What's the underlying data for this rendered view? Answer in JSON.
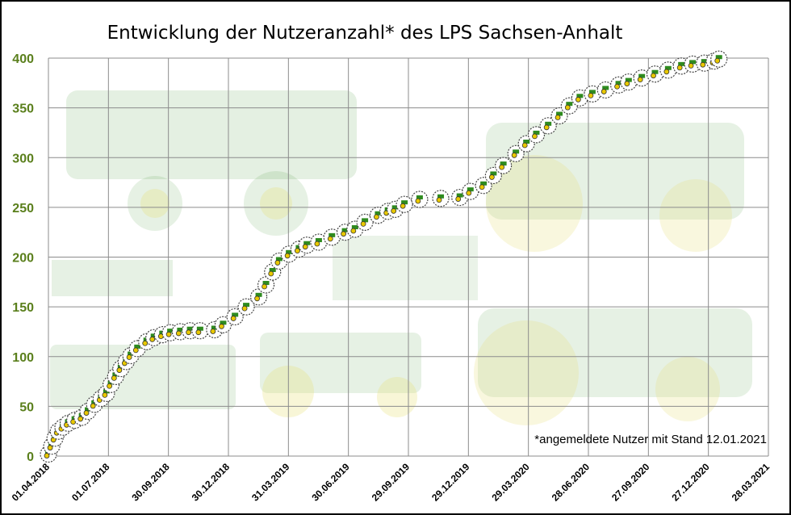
{
  "chart_data": {
    "type": "line",
    "title": "Entwicklung der Nutzeranzahl* des LPS Sachsen-Anhalt",
    "annotation": "*angemeldete Nutzer mit Stand 12.01.2021",
    "x_unit": "days since 01.04.2018",
    "xlim": [
      0,
      1092
    ],
    "ylim": [
      0,
      400
    ],
    "y_ticks": [
      "0",
      "50",
      "100",
      "150",
      "200",
      "250",
      "300",
      "350",
      "400"
    ],
    "x_ticks": [
      "01.04.2018",
      "01.07.2018",
      "30.09.2018",
      "30.12.2018",
      "31.03.2019",
      "30.06.2019",
      "29.09.2019",
      "29.12.2019",
      "29.03.2020",
      "28.06.2020",
      "27.09.2020",
      "27.12.2020",
      "28.03.2021"
    ],
    "grid": true,
    "marker": "tractor-icon",
    "colors": {
      "ytick": "#5a7f1c",
      "grid": "#8c8c8c",
      "marker_green": "#2e8b1f",
      "marker_yellow": "#e8c800"
    },
    "series": [
      {
        "name": "Nutzer",
        "x": [
          0,
          5,
          10,
          15,
          22,
          30,
          40,
          51,
          60,
          70,
          80,
          88,
          95,
          102,
          110,
          118,
          125,
          135,
          149,
          160,
          173,
          185,
          200,
          215,
          230,
          252,
          265,
          283,
          300,
          319,
          330,
          340,
          350,
          365,
          380,
          392,
          410,
          430,
          450,
          465,
          480,
          500,
          515,
          526,
          540,
          563,
          595,
          624,
          640,
          660,
          675,
          690,
          709,
          725,
          740,
          758,
          775,
          790,
          806,
          825,
          845,
          865,
          880,
          900,
          920,
          940,
          960,
          977,
          995,
          1010,
          1017
        ],
        "y": [
          2,
          10,
          18,
          25,
          29,
          33,
          36,
          39,
          45,
          52,
          58,
          63,
          72,
          80,
          88,
          95,
          101,
          108,
          115,
          119,
          122,
          124,
          125,
          126,
          126,
          127,
          132,
          140,
          150,
          160,
          172,
          185,
          196,
          203,
          208,
          212,
          215,
          220,
          225,
          228,
          235,
          242,
          246,
          248,
          253,
          258,
          259,
          260,
          266,
          272,
          282,
          292,
          304,
          314,
          323,
          332,
          342,
          352,
          360,
          364,
          368,
          373,
          376,
          380,
          384,
          388,
          392,
          394,
          395,
          397,
          399
        ]
      }
    ]
  }
}
